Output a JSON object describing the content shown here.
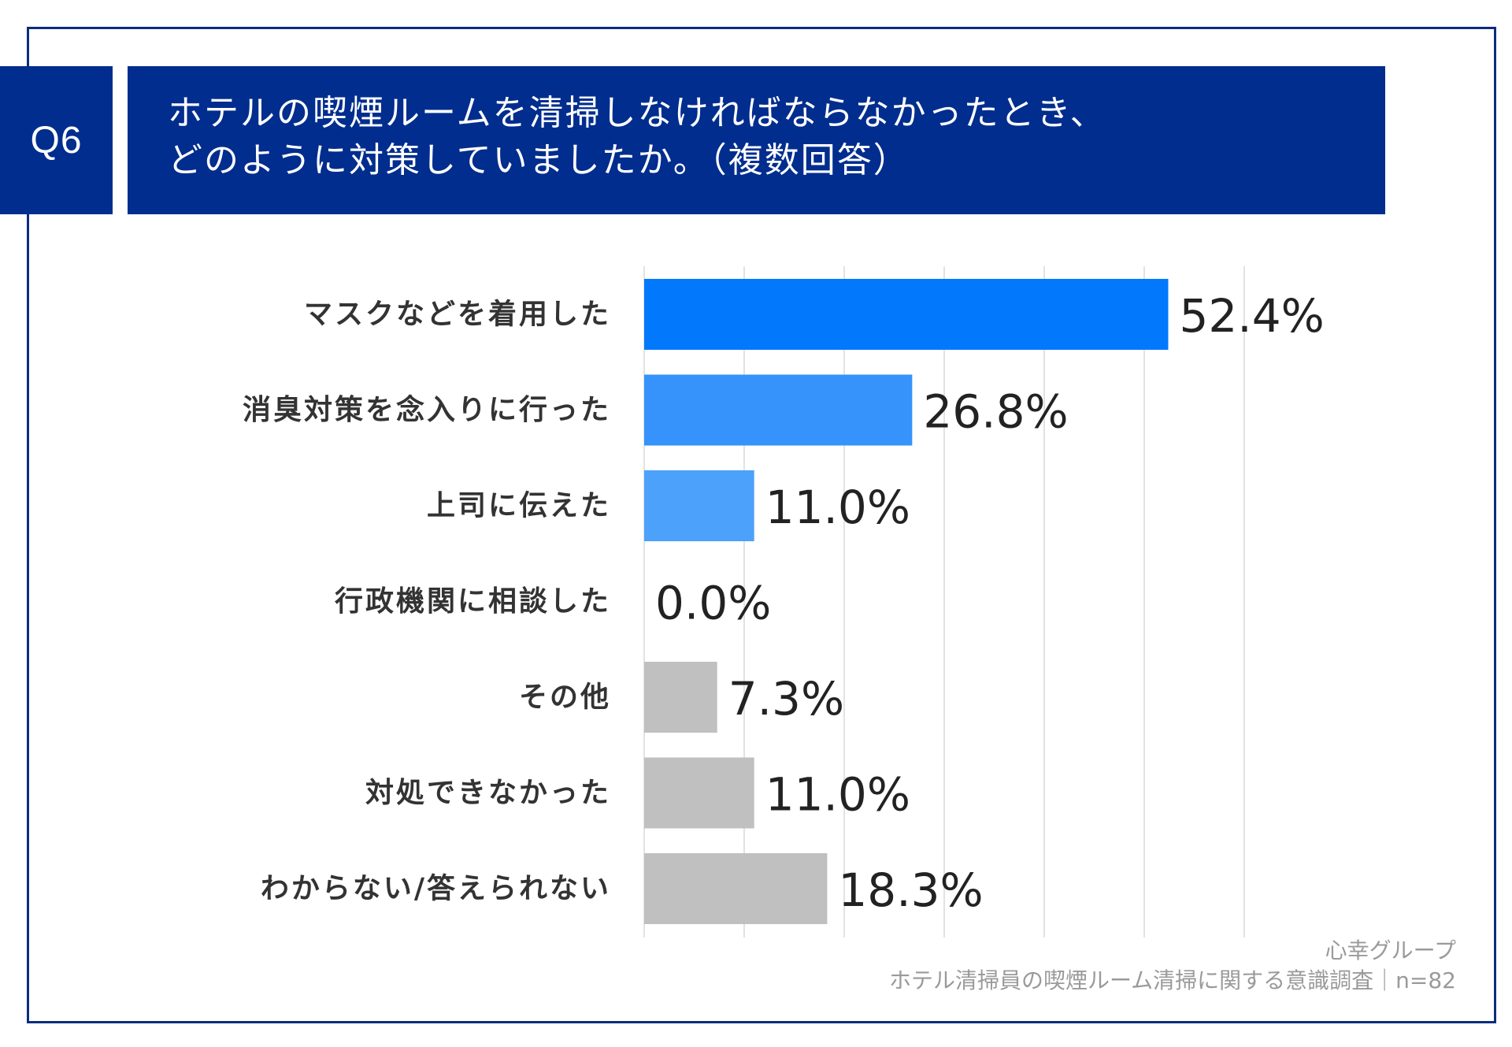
{
  "header": {
    "question_no": "Q6",
    "title_line1": "ホテルの喫煙ルームを清掃しなければならなかったとき、",
    "title_line2": "どのように対策していましたか。（複数回答）"
  },
  "footer": {
    "company": "心幸グループ",
    "survey": "ホテル清掃員の喫煙ルーム清掃に関する意識調査｜n=82"
  },
  "colors": {
    "header_bg": "#002d8e",
    "frame": "#0b2d7f",
    "grid": "#d9d9d9",
    "gray_bar": "#c0c0c0"
  },
  "chart_data": {
    "type": "bar",
    "orientation": "horizontal",
    "title": "ホテルの喫煙ルームを清掃しなければならなかったとき、どのように対策していましたか。（複数回答）",
    "xlim": [
      0,
      60
    ],
    "grid": true,
    "categories": [
      "マスクなどを着用した",
      "消臭対策を念入りに行った",
      "上司に伝えた",
      "行政機関に相談した",
      "その他",
      "対処できなかった",
      "わからない/答えられない"
    ],
    "values": [
      52.4,
      26.8,
      11.0,
      0.0,
      7.3,
      11.0,
      18.3
    ],
    "value_labels": [
      "52.4%",
      "26.8%",
      "11.0%",
      "0.0%",
      "7.3%",
      "11.0%",
      "18.3%"
    ],
    "bar_colors": [
      "#0278fd",
      "#3593fb",
      "#4ca1fb",
      "#4ca1fb",
      "#c0c0c0",
      "#c0c0c0",
      "#c0c0c0"
    ]
  }
}
